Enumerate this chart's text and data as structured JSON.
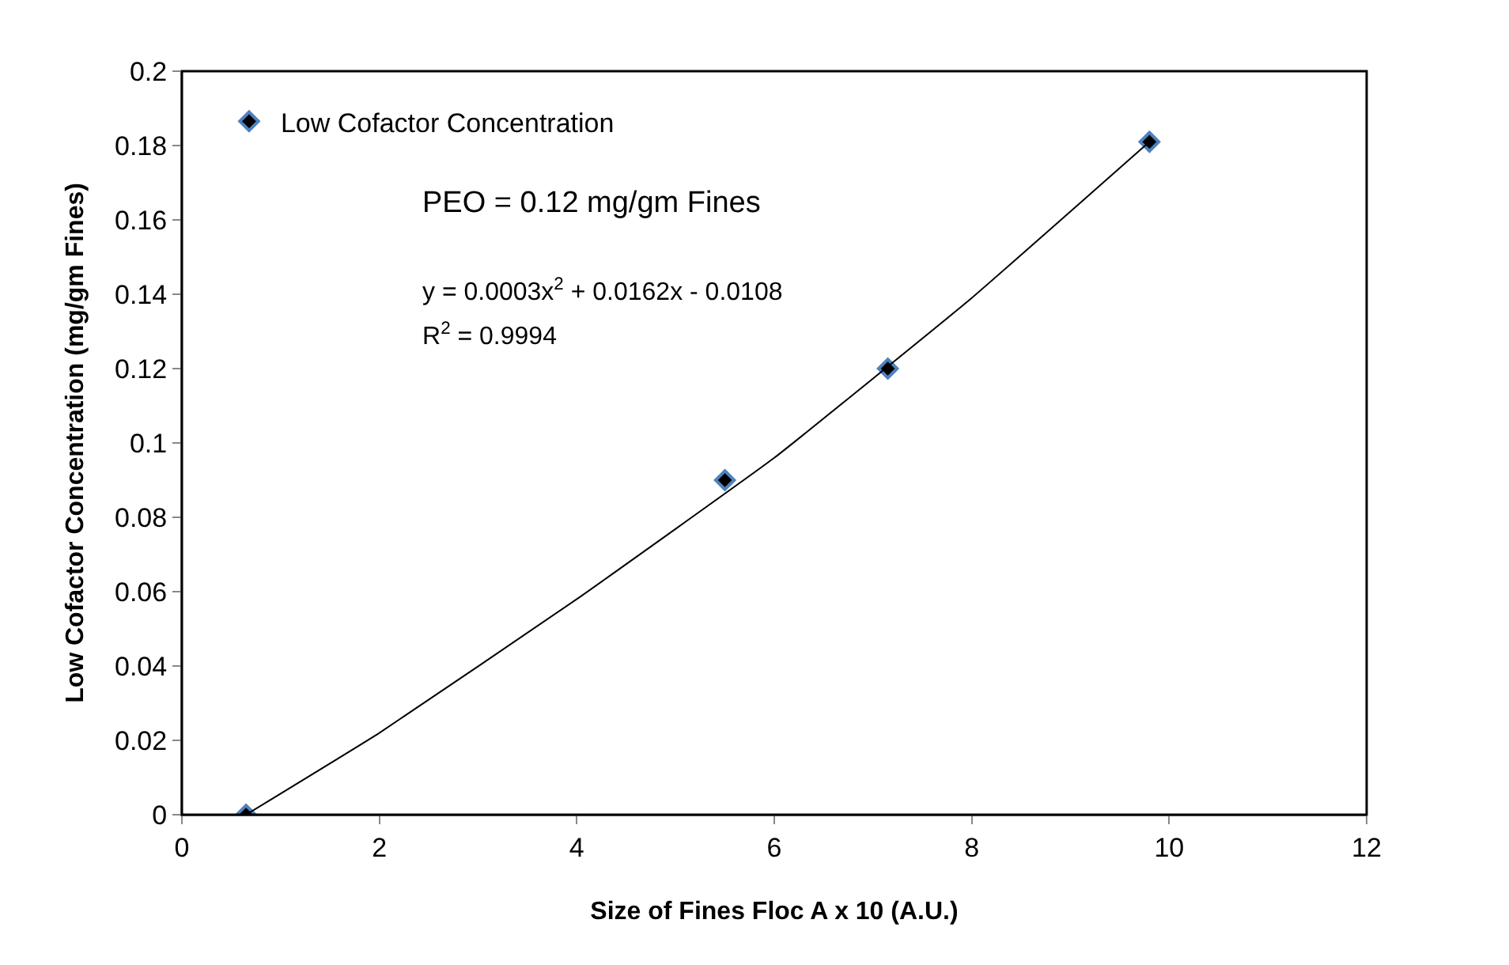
{
  "chart_data": {
    "type": "scatter",
    "xlabel": "Size of Fines Floc A x 10 (A.U.)",
    "ylabel": "Low Cofactor Concentration (mg/gm Fines)",
    "xlim": [
      0,
      12
    ],
    "xticks": [
      0,
      2,
      4,
      6,
      8,
      10,
      12
    ],
    "ylim": [
      0,
      0.2
    ],
    "yticks": [
      0,
      0.02,
      0.04,
      0.06,
      0.08,
      0.1,
      0.12,
      0.14,
      0.16,
      0.18,
      0.2
    ],
    "legend": "top left",
    "marker": "diamond",
    "series": [
      {
        "name": "Low Cofactor Concentration",
        "color": "#000000",
        "x": [
          0.65,
          5.5,
          7.15,
          9.8
        ],
        "values": [
          0.0,
          0.09,
          0.12,
          0.181
        ]
      },
      {
        "type": "line",
        "color": "#000000",
        "marker": "none",
        "line_style": "solid",
        "x": [
          0.65,
          2,
          4,
          6,
          8,
          9.8
        ],
        "values": [
          0.0,
          0.022,
          0.058,
          0.096,
          0.139,
          0.181
        ]
      }
    ],
    "annotations": [
      "PEO = 0.12 mg/gm Fines",
      "y = 0.0003x$^{2}$ + 0.0162x - 0.0108",
      "R$^{2}$ = 0.9994"
    ]
  }
}
